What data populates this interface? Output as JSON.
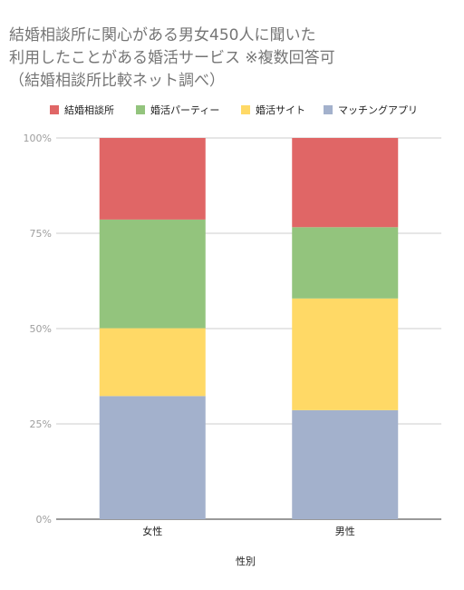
{
  "chart_data": {
    "type": "bar",
    "stacked": true,
    "title_lines": [
      "結婚相談所に関心がある男女450人に聞いた",
      "利用したことがある婚活サービス ※複数回答可",
      "（結婚相談所比較ネット調べ）"
    ],
    "xlabel": "性別",
    "ylabel": "",
    "categories": [
      "女性",
      "男性"
    ],
    "ylim": [
      0,
      100
    ],
    "yticks": [
      "0%",
      "25%",
      "50%",
      "75%",
      "100%"
    ],
    "grid": true,
    "legend_position": "top",
    "series": [
      {
        "name": "マッチングアプリ",
        "color": "#a3b1cc",
        "values": [
          32.3,
          28.6
        ]
      },
      {
        "name": "婚活サイト",
        "color": "#ffd966",
        "values": [
          17.8,
          29.3
        ]
      },
      {
        "name": "婚活パーティー",
        "color": "#93c47d",
        "values": [
          28.5,
          18.7
        ]
      },
      {
        "name": "結婚相談所",
        "color": "#e06666",
        "values": [
          21.4,
          23.4
        ]
      }
    ],
    "legend_order": [
      "結婚相談所",
      "婚活パーティー",
      "婚活サイト",
      "マッチングアプリ"
    ]
  }
}
